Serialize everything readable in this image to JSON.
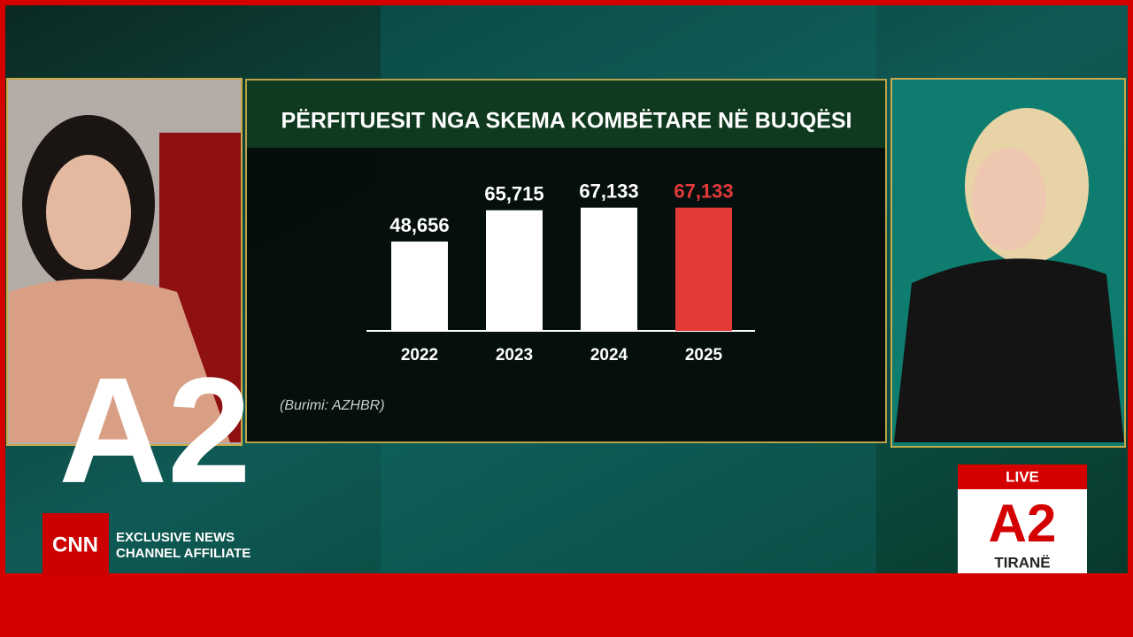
{
  "chart_data": {
    "type": "bar",
    "title": "PËRFITUESIT NGA SKEMA KOMBËTARE NË BUJQËSI",
    "categories": [
      "2022",
      "2023",
      "2024",
      "2025"
    ],
    "values": [
      48656,
      65715,
      67133,
      67133
    ],
    "value_labels": [
      "48,656",
      "65,715",
      "67,133",
      "67,133"
    ],
    "colors": [
      "#ffffff",
      "#ffffff",
      "#ffffff",
      "#e53a3a"
    ],
    "ylim": [
      0,
      80000
    ],
    "source": "(Burimi: AZHBR)"
  },
  "overlay": {
    "logo": "A2",
    "network": "CNN",
    "affiliate_line1": "EXCLUSIVE NEWS",
    "affiliate_line2": "CHANNEL AFFILIATE",
    "live": "LIVE",
    "live_logo": "A2",
    "location": "TIRANË"
  }
}
